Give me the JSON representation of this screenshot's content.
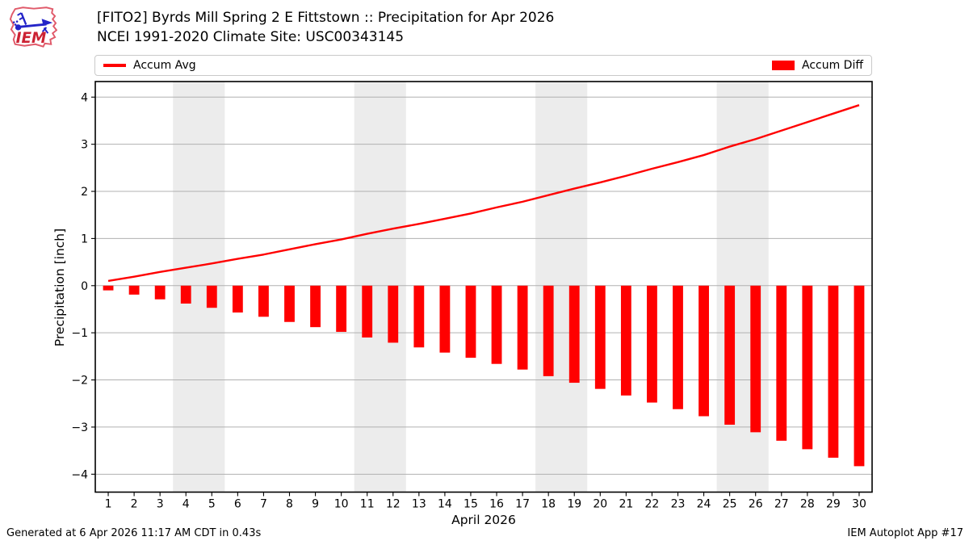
{
  "header": {
    "title_line1": "[FITO2] Byrds Mill Spring 2 E Fittstown :: Precipitation for Apr 2026",
    "title_line2": "NCEI 1991-2020 Climate Site: USC00343145"
  },
  "logo": {
    "text": "IEM"
  },
  "legend": {
    "avg_label": "Accum Avg",
    "diff_label": "Accum Diff"
  },
  "footer": {
    "generated": "Generated at 6 Apr 2026 11:17 AM CDT in 0.43s",
    "app": "IEM Autoplot App #17"
  },
  "chart_data": {
    "type": "bar",
    "x": [
      1,
      2,
      3,
      4,
      5,
      6,
      7,
      8,
      9,
      10,
      11,
      12,
      13,
      14,
      15,
      16,
      17,
      18,
      19,
      20,
      21,
      22,
      23,
      24,
      25,
      26,
      27,
      28,
      29,
      30
    ],
    "series": [
      {
        "name": "Accum Avg",
        "type": "line",
        "color": "#ff0000",
        "values": [
          0.1,
          0.19,
          0.29,
          0.38,
          0.47,
          0.57,
          0.66,
          0.77,
          0.88,
          0.98,
          1.1,
          1.21,
          1.31,
          1.42,
          1.53,
          1.66,
          1.78,
          1.92,
          2.06,
          2.19,
          2.33,
          2.48,
          2.62,
          2.77,
          2.95,
          3.11,
          3.29,
          3.47,
          3.65,
          3.83
        ]
      },
      {
        "name": "Accum Diff",
        "type": "bar",
        "color": "#ff0000",
        "values": [
          -0.1,
          -0.19,
          -0.29,
          -0.38,
          -0.47,
          -0.57,
          -0.66,
          -0.77,
          -0.88,
          -0.98,
          -1.1,
          -1.21,
          -1.31,
          -1.42,
          -1.53,
          -1.66,
          -1.78,
          -1.92,
          -2.06,
          -2.19,
          -2.33,
          -2.48,
          -2.62,
          -2.77,
          -2.95,
          -3.11,
          -3.29,
          -3.47,
          -3.65,
          -3.83
        ]
      }
    ],
    "xlabel": "April 2026",
    "ylabel": "Precipitation [inch]",
    "xlim": [
      0.5,
      30.5
    ],
    "ylim": [
      -4.38,
      4.33
    ],
    "yticks": [
      -4,
      -3,
      -2,
      -1,
      0,
      1,
      2,
      3,
      4
    ],
    "grid": true,
    "legend_position": "top",
    "weekend_bands": [
      [
        3.5,
        5.5
      ],
      [
        10.5,
        12.5
      ],
      [
        17.5,
        19.5
      ],
      [
        24.5,
        26.5
      ]
    ],
    "band_color": "#ececec",
    "grid_color": "#b0b0b0",
    "spine_color": "#000000",
    "bar_width_days": 0.4
  }
}
